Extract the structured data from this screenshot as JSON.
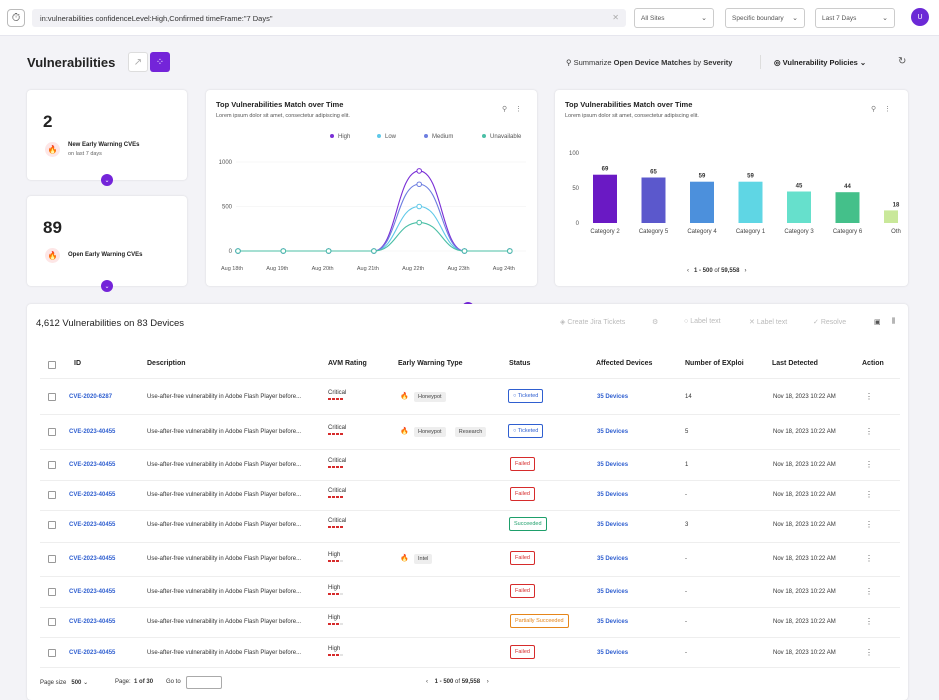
{
  "search": {
    "query": "in:vulnerabilities  confidenceLevel:High,Confirmed timeFrame:\"7 Days\""
  },
  "filters": {
    "sites": "All Sites",
    "boundary": "Specific boundary",
    "range": "Last 7 Days"
  },
  "user": {
    "initial": "U"
  },
  "page": {
    "title": "Vulnerabilities"
  },
  "summary": {
    "pre": "Summarize",
    "bold1": "Open Device Matches",
    "mid": "by",
    "bold2": "Severity"
  },
  "policies_label": "Vulnerability Policies",
  "stats": [
    {
      "value": "2",
      "label": "New Early Warning CVEs",
      "sub": "on last 7 days"
    },
    {
      "value": "89",
      "label": "Open Early Warning CVEs",
      "sub": ""
    }
  ],
  "colors": {
    "accent": "#7424d9",
    "link": "#2f5fd0",
    "critical": "#d62b2b"
  },
  "line_chart": {
    "title": "Top Vulnerabilities Match over Time",
    "subtitle": "Lorem ipsum dolor sit amet, consectetur adipiscing elit.",
    "chart_data": {
      "type": "line",
      "categories": [
        "Aug 18th",
        "Aug 19th",
        "Aug 20th",
        "Aug 21th",
        "Aug 22th",
        "Aug 23th",
        "Aug 24th"
      ],
      "ylim": [
        0,
        1000
      ],
      "yticks": [
        "1000",
        "500",
        "0"
      ],
      "series": [
        {
          "name": "High",
          "color": "#7a2fd6",
          "values": [
            0,
            0,
            0,
            0,
            900,
            0,
            0
          ]
        },
        {
          "name": "Low",
          "color": "#5ec8e8",
          "values": [
            0,
            0,
            0,
            0,
            500,
            0,
            0
          ]
        },
        {
          "name": "Medium",
          "color": "#6d7ee0",
          "values": [
            0,
            0,
            0,
            0,
            750,
            0,
            0
          ]
        },
        {
          "name": "Unavailable",
          "color": "#4bbfa6",
          "values": [
            0,
            0,
            0,
            0,
            320,
            0,
            0
          ]
        }
      ]
    }
  },
  "bar_chart": {
    "title": "Top Vulnerabilities Match over Time",
    "subtitle": "Lorem ipsum dolor sit amet, consectetur adipiscing elit.",
    "pager": {
      "range": "1 - 500",
      "of": "of",
      "total": "59,558"
    },
    "chart_data": {
      "type": "bar",
      "categories": [
        "Category 2",
        "Category 5",
        "Category 4",
        "Category 1",
        "Category 3",
        "Category 6",
        "Oth"
      ],
      "values": [
        69,
        65,
        59,
        59,
        45,
        44,
        18
      ],
      "colors": [
        "#6a19c4",
        "#5b58cc",
        "#4c90dc",
        "#5fd6e4",
        "#66e0cc",
        "#44c08a",
        "#c9e89a"
      ],
      "ylim": [
        0,
        100
      ],
      "yticks": [
        "100",
        "50",
        "0"
      ]
    }
  },
  "table": {
    "title": "4,612 Vulnerabilities on 83 Devices",
    "tools": {
      "jira": "Create Jira Tickets",
      "label1": "Label text",
      "label2": "Label text",
      "resolve": "Resolve"
    },
    "headers": {
      "id": "ID",
      "description": "Description",
      "avm": "AVM Rating",
      "ew": "Early Warning Type",
      "status": "Status",
      "devices": "Affected Devices",
      "exploits": "Number of EXploi",
      "last": "Last Detected",
      "action": "Action"
    },
    "rows": [
      {
        "id": "CVE-2020-6287",
        "desc": "Use-after-free vulnerability in Adobe Flash Player before...",
        "rating": "Critical",
        "level": 4,
        "tags": [
          "Honeypot"
        ],
        "status": "Ticketed",
        "skind": "ticketed",
        "devices": "35 Devices",
        "exploits": "14",
        "last": "Nov 18, 2023 10:22 AM"
      },
      {
        "id": "CVE-2023-40455",
        "desc": "Use-after-free vulnerability in Adobe Flash Player before...",
        "rating": "Critical",
        "level": 4,
        "tags": [
          "Honeypot",
          "Research"
        ],
        "status": "Ticketed",
        "skind": "ticketed",
        "devices": "35 Devices",
        "exploits": "5",
        "last": "Nov 18, 2023 10:22 AM"
      },
      {
        "id": "CVE-2023-40455",
        "desc": "Use-after-free vulnerability in Adobe Flash Player before...",
        "rating": "Critical",
        "level": 4,
        "tags": [],
        "status": "Failed",
        "skind": "failed",
        "devices": "35 Devices",
        "exploits": "1",
        "last": "Nov 18, 2023 10:22 AM"
      },
      {
        "id": "CVE-2023-40455",
        "desc": "Use-after-free vulnerability in Adobe Flash Player before...",
        "rating": "Critical",
        "level": 4,
        "tags": [],
        "status": "Failed",
        "skind": "failed",
        "devices": "35 Devices",
        "exploits": "-",
        "last": "Nov 18, 2023 10:22 AM"
      },
      {
        "id": "CVE-2023-40455",
        "desc": "Use-after-free vulnerability in Adobe Flash Player before...",
        "rating": "Critical",
        "level": 4,
        "tags": [],
        "status": "Succeeded",
        "skind": "succeeded",
        "devices": "35 Devices",
        "exploits": "3",
        "last": "Nov 18, 2023 10:22 AM"
      },
      {
        "id": "CVE-2023-40455",
        "desc": "Use-after-free vulnerability in Adobe Flash Player before...",
        "rating": "High",
        "level": 3,
        "tags": [
          "Intel"
        ],
        "status": "Failed",
        "skind": "failed",
        "devices": "35 Devices",
        "exploits": "-",
        "last": "Nov 18, 2023 10:22 AM"
      },
      {
        "id": "CVE-2023-40455",
        "desc": "Use-after-free vulnerability in Adobe Flash Player before...",
        "rating": "High",
        "level": 3,
        "tags": [],
        "status": "Failed",
        "skind": "failed",
        "devices": "35 Devices",
        "exploits": "-",
        "last": "Nov 18, 2023 10:22 AM"
      },
      {
        "id": "CVE-2023-40455",
        "desc": "Use-after-free vulnerability in Adobe Flash Player before...",
        "rating": "High",
        "level": 3,
        "tags": [],
        "status": "Partially Succeeded",
        "skind": "partial",
        "devices": "35 Devices",
        "exploits": "-",
        "last": "Nov 18, 2023 10:22 AM"
      },
      {
        "id": "CVE-2023-40455",
        "desc": "Use-after-free vulnerability in Adobe Flash Player before...",
        "rating": "High",
        "level": 3,
        "tags": [],
        "status": "Failed",
        "skind": "failed",
        "devices": "35 Devices",
        "exploits": "-",
        "last": "Nov 18, 2023 10:22 AM"
      }
    ]
  },
  "footer": {
    "page_size_label": "Page size",
    "page_size": "500",
    "page_label": "Page:",
    "page_value": "1 of 30",
    "goto_label": "Go to",
    "range": "1 - 500",
    "of": "of",
    "total": "59,558"
  }
}
